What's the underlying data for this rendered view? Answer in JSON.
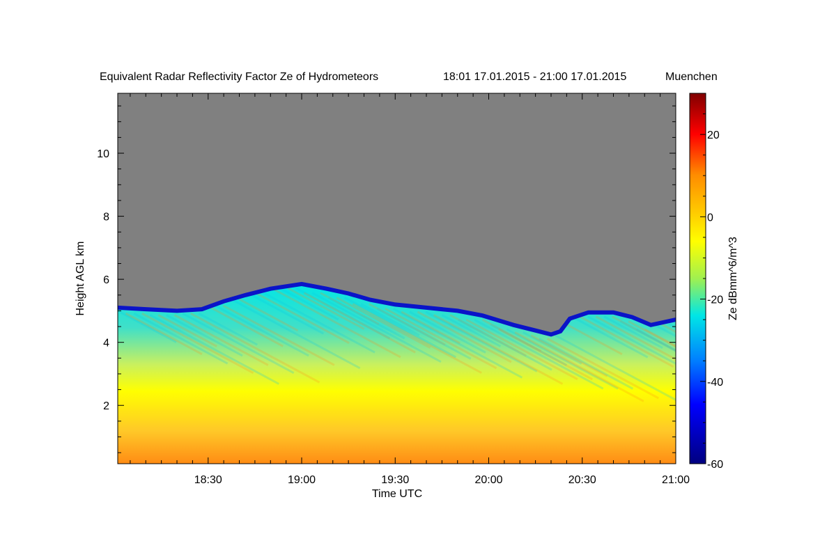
{
  "chart_data": {
    "type": "heatmap",
    "title": "Equivalent Radar Reflectivity Factor Ze of Hydrometeors",
    "time_range_label": "18:01 17.01.2015 - 21:00 17.01.2015",
    "location": "Muenchen",
    "xlabel": "Time UTC",
    "ylabel": "Height AGL km",
    "x_ticks": [
      "18:30",
      "19:00",
      "19:30",
      "20:00",
      "20:30",
      "21:00"
    ],
    "x_tick_minutes": [
      1110,
      1140,
      1170,
      1200,
      1230,
      1260
    ],
    "xlim_minutes": [
      1081,
      1260
    ],
    "y_ticks": [
      2,
      4,
      6,
      8,
      10
    ],
    "ylim": [
      0.15,
      11.9
    ],
    "colorbar": {
      "label": "Ze dBmm^6/m^3",
      "ticks": [
        20,
        0,
        -20,
        -40,
        -60
      ],
      "range": [
        -60,
        30
      ]
    },
    "colors": {
      "no_signal": "#808080",
      "cloud_top": "#0a14c8",
      "low_reflectivity": "#00e6e6",
      "mid_reflectivity": "#ffff00",
      "high_reflectivity": "#ff8c14"
    },
    "cloud_top_km": [
      [
        1081,
        5.1
      ],
      [
        1090,
        5.05
      ],
      [
        1100,
        5.0
      ],
      [
        1108,
        5.05
      ],
      [
        1115,
        5.3
      ],
      [
        1122,
        5.5
      ],
      [
        1130,
        5.7
      ],
      [
        1140,
        5.85
      ],
      [
        1148,
        5.7
      ],
      [
        1155,
        5.55
      ],
      [
        1162,
        5.35
      ],
      [
        1170,
        5.2
      ],
      [
        1180,
        5.1
      ],
      [
        1190,
        5.0
      ],
      [
        1198,
        4.85
      ],
      [
        1203,
        4.7
      ],
      [
        1208,
        4.55
      ],
      [
        1212,
        4.45
      ],
      [
        1216,
        4.35
      ],
      [
        1220,
        4.25
      ],
      [
        1223,
        4.35
      ],
      [
        1226,
        4.75
      ],
      [
        1232,
        4.95
      ],
      [
        1240,
        4.95
      ],
      [
        1246,
        4.8
      ],
      [
        1252,
        4.55
      ],
      [
        1260,
        4.72
      ]
    ]
  }
}
